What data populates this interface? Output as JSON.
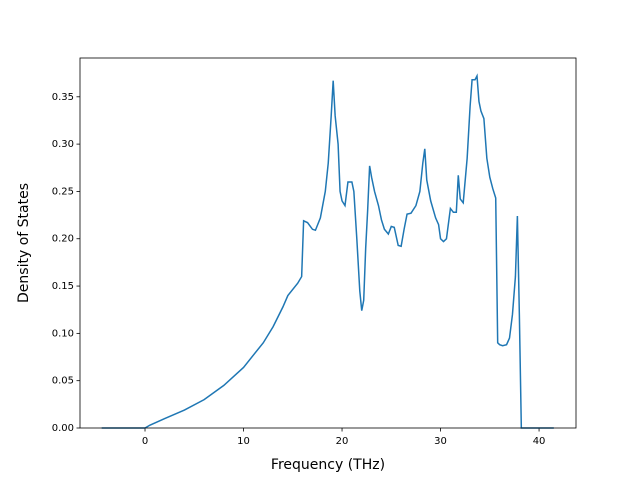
{
  "chart_data": {
    "type": "line",
    "xlabel": "Frequency (THz)",
    "ylabel": "Density of States",
    "x": [
      -4.4,
      0,
      0.5,
      2,
      4,
      6,
      8,
      10,
      12,
      13,
      14,
      14.5,
      15.5,
      15.9,
      16.1,
      16.5,
      17,
      17.3,
      17.8,
      18.3,
      18.6,
      18.9,
      19.1,
      19.3,
      19.6,
      19.8,
      20,
      20.3,
      20.6,
      21,
      21.2,
      21.5,
      21.8,
      22,
      22.2,
      22.4,
      22.6,
      22.8,
      23,
      23.3,
      23.7,
      24,
      24.3,
      24.7,
      25,
      25.3,
      25.7,
      26,
      26.3,
      26.6,
      27,
      27.5,
      27.9,
      28.2,
      28.4,
      28.6,
      29,
      29.5,
      29.8,
      30,
      30.3,
      30.6,
      31,
      31.3,
      31.6,
      31.8,
      32,
      32.3,
      32.7,
      33,
      33.2,
      33.5,
      33.7,
      33.9,
      34.1,
      34.4,
      34.7,
      35,
      35.3,
      35.6,
      35.8,
      36,
      36.3,
      36.7,
      37,
      37.3,
      37.6,
      37.8,
      38,
      38.2,
      41.5
    ],
    "series": [
      {
        "name": "DOS",
        "color": "#1f77b4",
        "values": [
          0,
          0,
          0.003,
          0.01,
          0.019,
          0.03,
          0.045,
          0.064,
          0.09,
          0.107,
          0.128,
          0.14,
          0.153,
          0.16,
          0.219,
          0.217,
          0.21,
          0.209,
          0.222,
          0.25,
          0.28,
          0.33,
          0.367,
          0.33,
          0.3,
          0.25,
          0.24,
          0.235,
          0.26,
          0.26,
          0.25,
          0.2,
          0.145,
          0.124,
          0.135,
          0.19,
          0.23,
          0.277,
          0.265,
          0.25,
          0.235,
          0.22,
          0.21,
          0.205,
          0.213,
          0.212,
          0.193,
          0.192,
          0.21,
          0.226,
          0.227,
          0.235,
          0.25,
          0.28,
          0.295,
          0.262,
          0.24,
          0.222,
          0.215,
          0.2,
          0.197,
          0.2,
          0.232,
          0.228,
          0.228,
          0.267,
          0.242,
          0.238,
          0.285,
          0.34,
          0.368,
          0.368,
          0.372,
          0.345,
          0.335,
          0.327,
          0.285,
          0.265,
          0.253,
          0.243,
          0.09,
          0.088,
          0.087,
          0.088,
          0.095,
          0.12,
          0.16,
          0.224,
          0.12,
          0,
          0
        ]
      }
    ],
    "xlim": [
      -6.6,
      43.75
    ],
    "ylim": [
      0,
      0.391
    ],
    "xticks": [
      0,
      10,
      20,
      30,
      40
    ],
    "yticks": [
      {
        "value": 0,
        "label": "0.00"
      },
      {
        "value": 0.05,
        "label": "0.05"
      },
      {
        "value": 0.1,
        "label": "0.10"
      },
      {
        "value": 0.15,
        "label": "0.15"
      },
      {
        "value": 0.2,
        "label": "0.20"
      },
      {
        "value": 0.25,
        "label": "0.25"
      },
      {
        "value": 0.3,
        "label": "0.30"
      },
      {
        "value": 0.35,
        "label": "0.35"
      }
    ]
  }
}
